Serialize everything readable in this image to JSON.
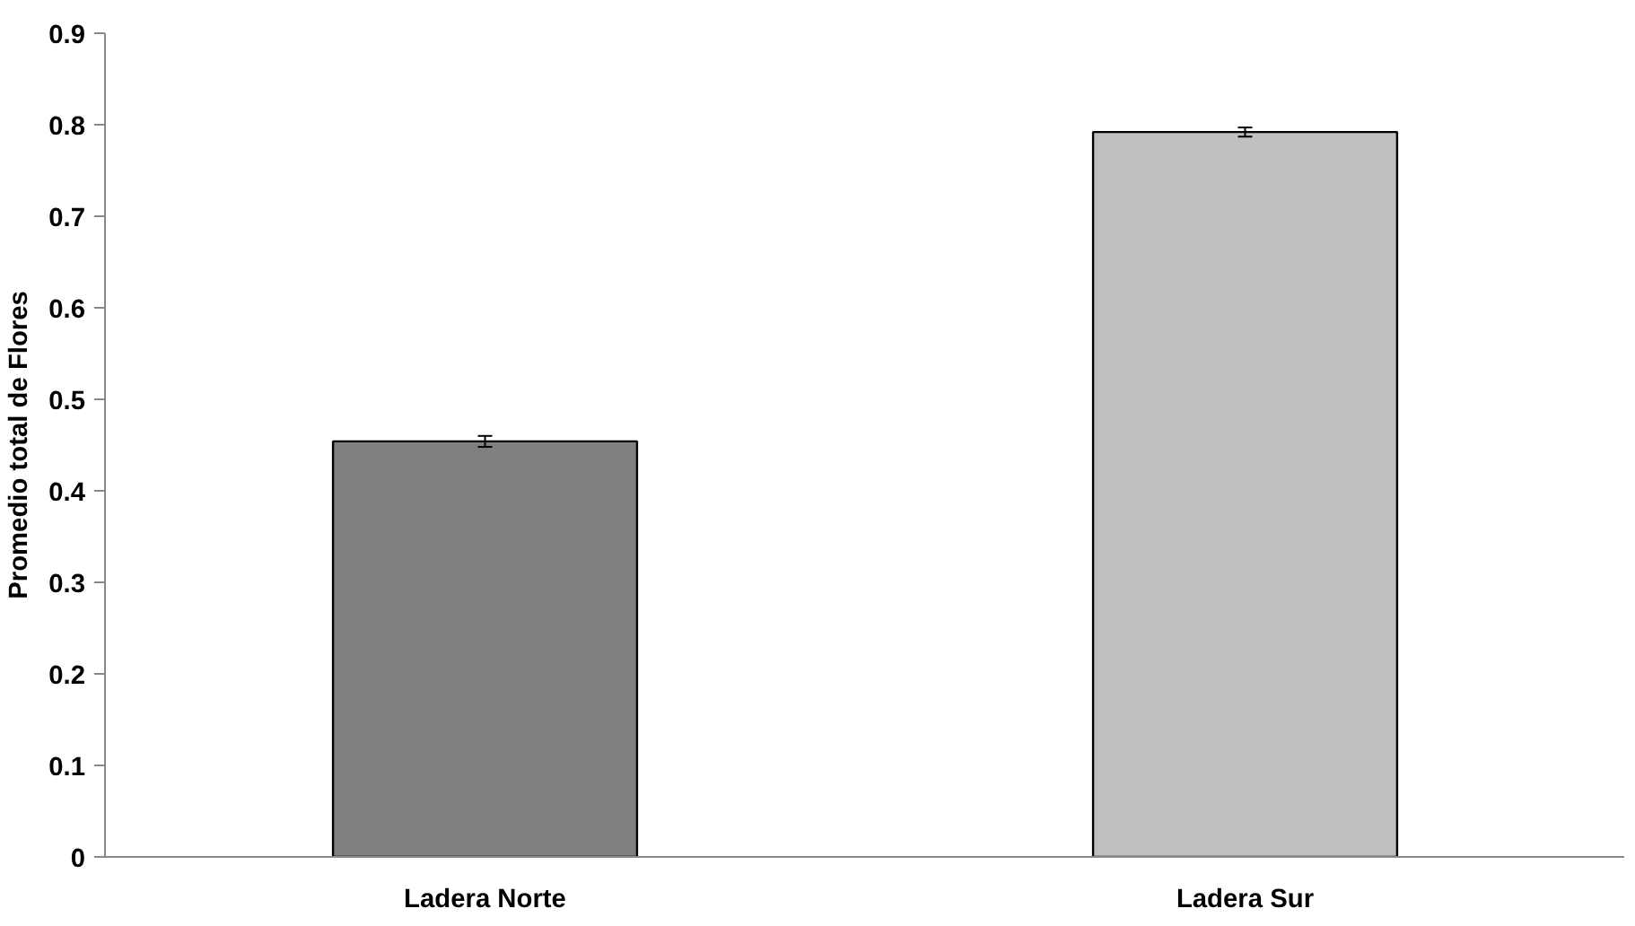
{
  "chart_data": {
    "type": "bar",
    "ylabel": "Promedio total de Flores",
    "categories": [
      "Ladera Norte",
      "Ladera Sur"
    ],
    "values": [
      0.454,
      0.792
    ],
    "colors": [
      "#808080",
      "#c0c0c0"
    ],
    "errors": [
      0.006,
      0.005
    ],
    "ylim": [
      0,
      0.9
    ],
    "yticks": [
      0,
      0.1,
      0.2,
      0.3,
      0.4,
      0.5,
      0.6,
      0.7,
      0.8,
      0.9
    ],
    "grid": false
  }
}
